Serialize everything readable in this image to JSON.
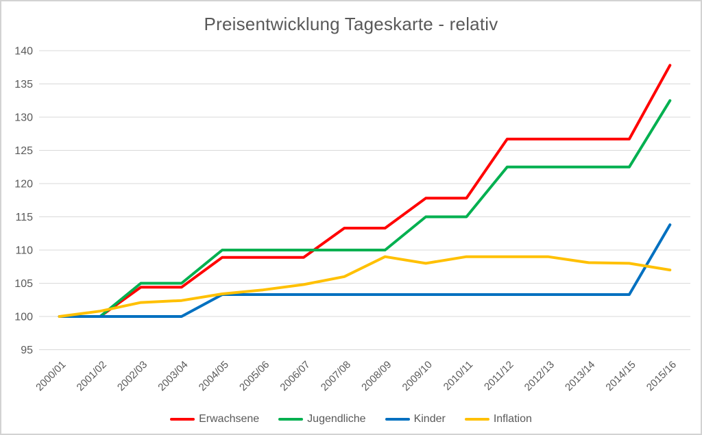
{
  "window": {
    "background_color": "#FFFFFF",
    "border_color": "#D2D2D2"
  },
  "chart_data": {
    "type": "line",
    "title": "Preisentwicklung Tageskarte - relativ",
    "xlabel": "",
    "ylabel": "",
    "categories": [
      "2000/01",
      "2001/02",
      "2002/03",
      "2003/04",
      "2004/05",
      "2005/06",
      "2006/07",
      "2007/08",
      "2008/09",
      "2009/10",
      "2010/11",
      "2011/12",
      "2012/13",
      "2013/14",
      "2014/15",
      "2015/16"
    ],
    "series": [
      {
        "name": "Erwachsene",
        "color": "#FF0000",
        "values": [
          100,
          100,
          104.4,
          104.4,
          108.9,
          108.9,
          108.9,
          113.3,
          113.3,
          117.8,
          117.8,
          126.7,
          126.7,
          126.7,
          126.7,
          137.8
        ]
      },
      {
        "name": "Jugendliche",
        "color": "#00B050",
        "values": [
          100,
          100,
          105,
          105,
          110,
          110,
          110,
          110,
          110,
          115,
          115,
          122.5,
          122.5,
          122.5,
          122.5,
          132.5
        ]
      },
      {
        "name": "Kinder",
        "color": "#0070C0",
        "values": [
          100,
          100,
          100,
          100,
          103.3,
          103.3,
          103.3,
          103.3,
          103.3,
          103.3,
          103.3,
          103.3,
          103.3,
          103.3,
          103.3,
          113.8
        ]
      },
      {
        "name": "Inflation",
        "color": "#FFC000",
        "values": [
          100,
          100.8,
          102.1,
          102.4,
          103.4,
          104.0,
          104.8,
          106.0,
          109.0,
          108.0,
          109.0,
          109.0,
          109.0,
          108.1,
          108.0,
          107.0
        ]
      }
    ],
    "ylim": [
      95,
      140
    ],
    "yticks": [
      95,
      100,
      105,
      110,
      115,
      120,
      125,
      130,
      135,
      140
    ],
    "grid": "horizontal",
    "grid_color": "#D9D9D9",
    "text_color": "#595959",
    "legend_position": "bottom",
    "x_label_rotation_deg": 45
  }
}
